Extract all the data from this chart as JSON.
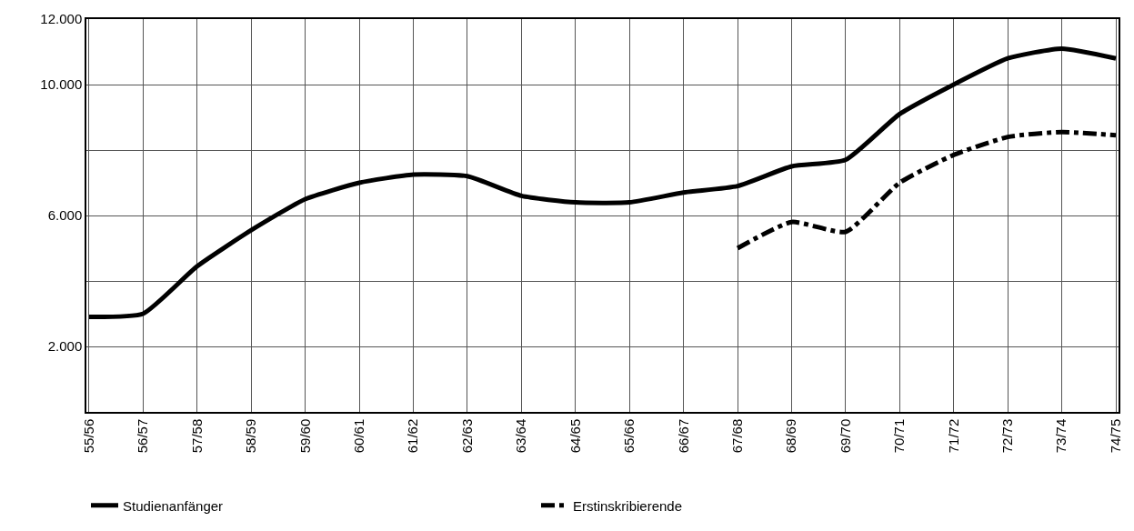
{
  "chart_data": {
    "type": "line",
    "categories": [
      "55/56",
      "56/57",
      "57/58",
      "58/59",
      "59/60",
      "60/61",
      "61/62",
      "62/63",
      "63/64",
      "64/65",
      "65/66",
      "66/67",
      "67/68",
      "68/69",
      "69/70",
      "70/71",
      "71/72",
      "72/73",
      "73/74",
      "74/75"
    ],
    "series": [
      {
        "name": "Studienanfänger",
        "color": "#000000",
        "line_style": "solid",
        "values": [
          2900,
          3000,
          4450,
          5550,
          6500,
          7000,
          7250,
          7200,
          6600,
          6400,
          6400,
          6700,
          6900,
          7500,
          7700,
          9100,
          10000,
          10800,
          11100,
          10800
        ]
      },
      {
        "name": "Erstinskribierende",
        "color": "#000000",
        "line_style": "dashdot",
        "values": [
          null,
          null,
          null,
          null,
          null,
          null,
          null,
          null,
          null,
          null,
          null,
          null,
          5000,
          5800,
          5500,
          7000,
          7850,
          8400,
          8550,
          8450
        ]
      }
    ],
    "ylim": [
      0,
      12000
    ],
    "yticks": [
      {
        "value": 0,
        "label": null
      },
      {
        "value": 2000,
        "label": "2.000"
      },
      {
        "value": 4000,
        "label": null
      },
      {
        "value": 6000,
        "label": "6.000"
      },
      {
        "value": 8000,
        "label": null
      },
      {
        "value": 10000,
        "label": "10.000"
      },
      {
        "value": 12000,
        "label": "12.000"
      }
    ],
    "grid": true,
    "legend": "bottom",
    "marker": "none"
  }
}
